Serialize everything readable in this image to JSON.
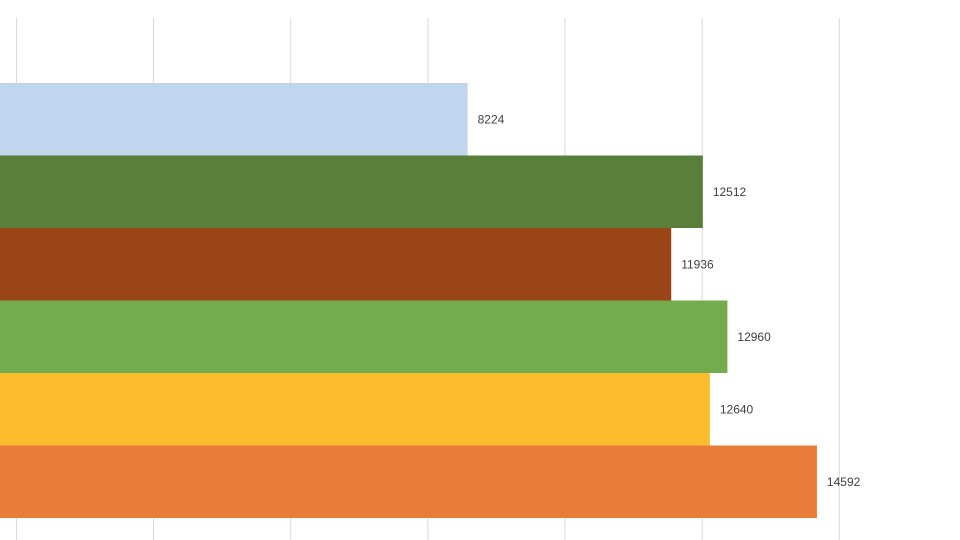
{
  "chart_data": {
    "type": "bar",
    "orientation": "horizontal",
    "x_range": [
      -300,
      17200
    ],
    "gridlines": true,
    "legend": "none",
    "series": [
      {
        "value": 8224,
        "label": "8224",
        "color": "#C0D6EE"
      },
      {
        "value": 12512,
        "label": "12512",
        "color": "#58803A"
      },
      {
        "value": 11936,
        "label": "11936",
        "color": "#9A4518"
      },
      {
        "value": 12960,
        "label": "12960",
        "color": "#72AC4D"
      },
      {
        "value": 12640,
        "label": "12640",
        "color": "#FCBD2D"
      },
      {
        "value": 14592,
        "label": "14592",
        "color": "#EA7C3A"
      }
    ]
  }
}
